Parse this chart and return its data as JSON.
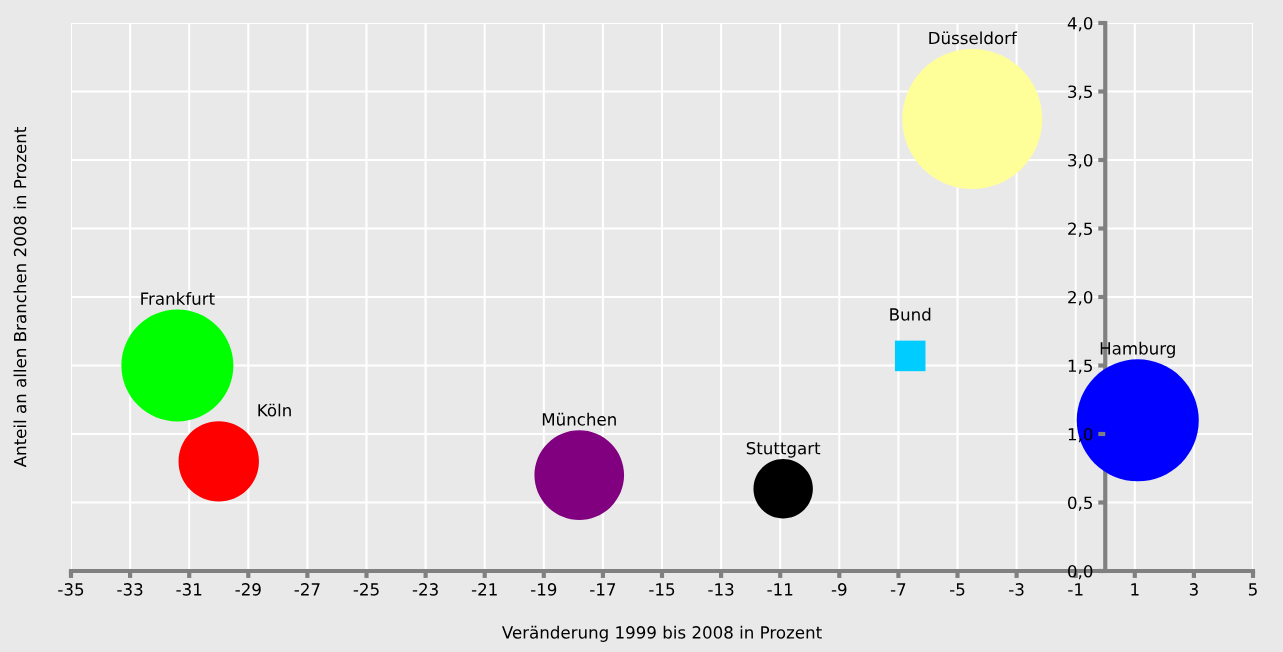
{
  "chart_data": {
    "type": "bubble",
    "xlabel": "Veränderung 1999 bis 2008 in Prozent",
    "ylabel": "Anteil an allen Branchen 2008 in Prozent",
    "series": [
      {
        "name": "Frankfurt",
        "color": "#00ff00",
        "x": [
          -31.4
        ],
        "values": [
          1.5
        ],
        "sizes": [
          0.64
        ]
      },
      {
        "name": "Köln",
        "color": "#ff0000",
        "x": [
          -30.0
        ],
        "values": [
          0.8
        ],
        "sizes": [
          0.33
        ]
      },
      {
        "name": "München",
        "color": "#800080",
        "x": [
          -17.8
        ],
        "values": [
          0.7
        ],
        "sizes": [
          0.41
        ]
      },
      {
        "name": "Stuttgart",
        "color": "#000000",
        "x": [
          -10.9
        ],
        "values": [
          0.6
        ],
        "sizes": [
          0.18
        ]
      },
      {
        "name": "Bund",
        "type": "scatter",
        "marker": "square",
        "color": "#00ccff",
        "x": [
          -6.6
        ],
        "values": [
          1.57
        ]
      },
      {
        "name": "Düsseldorf",
        "color": "#ffff99",
        "x": [
          -4.5
        ],
        "values": [
          3.3
        ],
        "sizes": [
          1
        ]
      },
      {
        "name": "Hamburg",
        "color": "#0000ff",
        "x": [
          1.1
        ],
        "values": [
          1.1
        ],
        "sizes": [
          0.76
        ]
      }
    ],
    "xlim": [
      -35,
      5
    ],
    "xticks": [
      -35,
      -33,
      -31,
      -29,
      -27,
      -25,
      -23,
      -21,
      -19,
      -17,
      -15,
      -13,
      -11,
      -9,
      -7,
      -5,
      -3,
      -1,
      1,
      3,
      5
    ],
    "ylim": [
      0,
      4
    ],
    "yticks": [
      {
        "value": 0,
        "label": "0,0"
      },
      {
        "value": 0.5,
        "label": "0,5"
      },
      {
        "value": 1,
        "label": "1,0"
      },
      {
        "value": 1.5,
        "label": "1,5"
      },
      {
        "value": 2,
        "label": "2,0"
      },
      {
        "value": 2.5,
        "label": "2,5"
      },
      {
        "value": 3,
        "label": "3,0"
      },
      {
        "value": 3.5,
        "label": "3,5"
      },
      {
        "value": 4,
        "label": "4,0"
      }
    ],
    "grid": true,
    "legend": false
  }
}
